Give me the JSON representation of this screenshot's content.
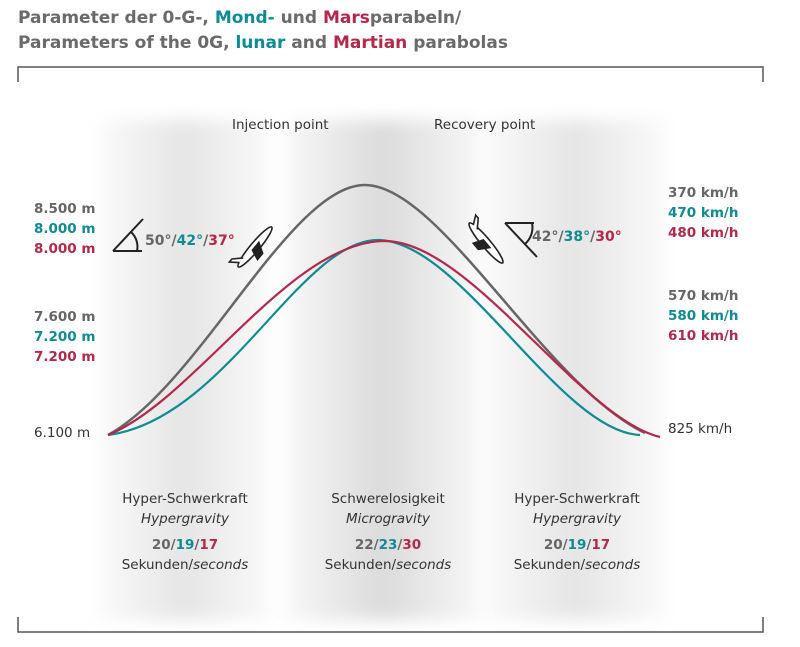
{
  "title": {
    "line1": {
      "part1": "Parameter der 0-G-, ",
      "mond": "Mond-",
      "und": " und ",
      "mars": "Mars",
      "part2": "parabeln/"
    },
    "line2": {
      "part1": "Parameters of the 0G, ",
      "lunar": "lunar",
      "and": " and ",
      "martian": "Martian",
      "part2": " parabolas"
    }
  },
  "colors": {
    "zero_g": "#666666",
    "lunar": "#0e8b93",
    "martian": "#b3284b"
  },
  "top_labels": {
    "injection": "Injection point",
    "recovery": "Recovery point"
  },
  "altitudes": {
    "top": [
      "8.500 m",
      "8.000 m",
      "8.000 m"
    ],
    "mid": [
      "7.600 m",
      "7.200 m",
      "7.200 m"
    ],
    "base": "6.100 m"
  },
  "speeds": {
    "top": [
      "370 km/h",
      "470 km/h",
      "480 km/h"
    ],
    "mid": [
      "570 km/h",
      "580 km/h",
      "610 km/h"
    ],
    "base": "825 km/h"
  },
  "angles": {
    "injection": [
      "50°",
      "42°",
      "37°"
    ],
    "recovery": [
      "42°",
      "38°",
      "30°"
    ],
    "sep": "/"
  },
  "phases": [
    {
      "de": "Hyper-Schwerkraft",
      "en": "Hypergravity",
      "durations": [
        "20",
        "19",
        "17"
      ],
      "unit_de": "Sekunden/",
      "unit_en": "seconds"
    },
    {
      "de": "Schwerelosigkeit",
      "en": "Microgravity",
      "durations": [
        "22",
        "23",
        "30"
      ],
      "unit_de": "Sekunden/",
      "unit_en": "seconds"
    },
    {
      "de": "Hyper-Schwerkraft",
      "en": "Hypergravity",
      "durations": [
        "20",
        "19",
        "17"
      ],
      "unit_de": "Sekunden/",
      "unit_en": "seconds"
    }
  ]
}
